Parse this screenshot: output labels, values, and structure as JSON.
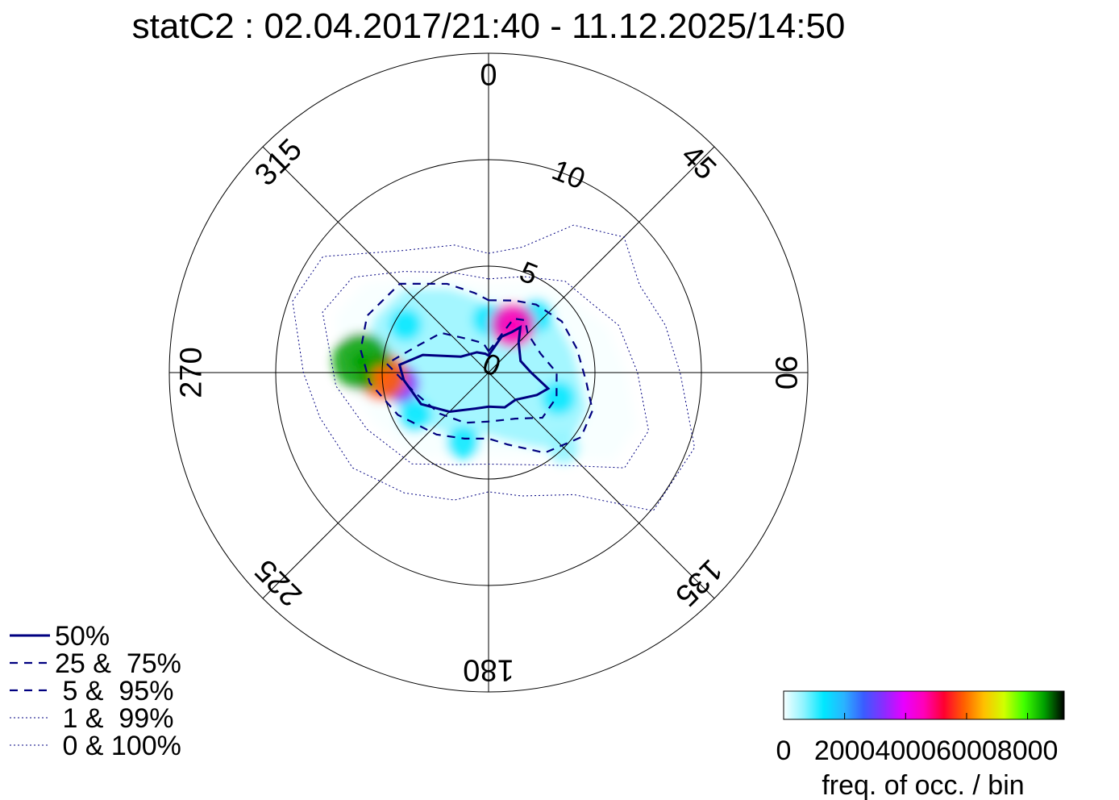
{
  "chart_data": {
    "type": "heatmap",
    "title": "statC2 : 02.04.2017/21:40 - 11.12.2025/14:50",
    "projection": "polar",
    "angular_ticks": [
      "0",
      "45",
      "90",
      "135",
      "180",
      "225",
      "270",
      "315"
    ],
    "angular_tick_values": [
      0,
      45,
      90,
      135,
      180,
      225,
      270,
      315
    ],
    "radial_ticks": [
      "0",
      "5",
      "10"
    ],
    "radial_tick_values": [
      0,
      5,
      10
    ],
    "radial_max": 15,
    "grid": true,
    "hotspots": [
      {
        "angle": 275,
        "radius": 6.0,
        "value": 8800
      },
      {
        "angle": 268,
        "radius": 5.0,
        "value": 6200
      },
      {
        "angle": 263,
        "radius": 4.2,
        "value": 3000
      },
      {
        "angle": 27,
        "radius": 2.5,
        "value": 4800
      },
      {
        "angle": 40,
        "radius": 3.5,
        "value": 1500
      },
      {
        "angle": 110,
        "radius": 3.5,
        "value": 1500
      },
      {
        "angle": 135,
        "radius": 5.0,
        "value": 900
      },
      {
        "angle": 200,
        "radius": 3.5,
        "value": 1300
      },
      {
        "angle": 240,
        "radius": 4.0,
        "value": 1500
      },
      {
        "angle": 300,
        "radius": 4.5,
        "value": 1100
      },
      {
        "angle": 0,
        "radius": 2.5,
        "value": 1200
      }
    ],
    "contours": [
      {
        "level": "50%",
        "style": "solid",
        "points": [
          [
            0,
            0.8
          ],
          [
            20,
            1.8
          ],
          [
            30,
            2.2
          ],
          [
            35,
            2.6
          ],
          [
            45,
            2.0
          ],
          [
            70,
            1.6
          ],
          [
            90,
            2.0
          ],
          [
            105,
            2.9
          ],
          [
            115,
            2.5
          ],
          [
            135,
            1.8
          ],
          [
            155,
            1.8
          ],
          [
            180,
            1.6
          ],
          [
            200,
            1.8
          ],
          [
            225,
            2.6
          ],
          [
            245,
            3.5
          ],
          [
            265,
            4.0
          ],
          [
            275,
            4.2
          ],
          [
            285,
            3.2
          ],
          [
            300,
            1.5
          ],
          [
            330,
            1.1
          ],
          [
            350,
            0.9
          ],
          [
            360,
            0.8
          ]
        ]
      },
      {
        "level": "25 & 75%",
        "style": "dashed",
        "points": [
          [
            0,
            1.0
          ],
          [
            25,
            2.8
          ],
          [
            35,
            3.0
          ],
          [
            45,
            2.6
          ],
          [
            70,
            2.6
          ],
          [
            90,
            3.2
          ],
          [
            110,
            3.4
          ],
          [
            130,
            3.3
          ],
          [
            150,
            2.5
          ],
          [
            180,
            2.3
          ],
          [
            205,
            2.6
          ],
          [
            230,
            3.0
          ],
          [
            255,
            3.6
          ],
          [
            275,
            4.8
          ],
          [
            290,
            3.6
          ],
          [
            310,
            2.9
          ],
          [
            330,
            1.8
          ],
          [
            350,
            1.4
          ],
          [
            360,
            1.0
          ]
        ]
      },
      {
        "level": "5 & 95%",
        "style": "dashed",
        "points": [
          [
            0,
            3.4
          ],
          [
            20,
            3.6
          ],
          [
            35,
            3.9
          ],
          [
            55,
            4.2
          ],
          [
            75,
            4.3
          ],
          [
            95,
            4.6
          ],
          [
            110,
            5.2
          ],
          [
            125,
            5.3
          ],
          [
            145,
            4.6
          ],
          [
            165,
            3.5
          ],
          [
            180,
            3.1
          ],
          [
            200,
            3.3
          ],
          [
            220,
            3.8
          ],
          [
            245,
            4.7
          ],
          [
            265,
            5.6
          ],
          [
            280,
            6.1
          ],
          [
            295,
            6.3
          ],
          [
            315,
            5.9
          ],
          [
            335,
            4.6
          ],
          [
            350,
            3.8
          ],
          [
            360,
            3.4
          ]
        ]
      },
      {
        "level": "1 & 99%",
        "style": "dotted",
        "points": [
          [
            0,
            4.4
          ],
          [
            20,
            4.8
          ],
          [
            40,
            5.6
          ],
          [
            55,
            5.8
          ],
          [
            70,
            6.5
          ],
          [
            90,
            7.0
          ],
          [
            110,
            8.0
          ],
          [
            125,
            7.8
          ],
          [
            140,
            5.7
          ],
          [
            160,
            4.6
          ],
          [
            180,
            4.3
          ],
          [
            200,
            4.6
          ],
          [
            220,
            5.6
          ],
          [
            245,
            6.3
          ],
          [
            265,
            7.2
          ],
          [
            290,
            8.3
          ],
          [
            305,
            7.8
          ],
          [
            320,
            6.2
          ],
          [
            340,
            5.0
          ],
          [
            360,
            4.4
          ]
        ]
      },
      {
        "level": "0 & 100%",
        "style": "dotted",
        "points": [
          [
            0,
            5.6
          ],
          [
            15,
            6.1
          ],
          [
            30,
            8.0
          ],
          [
            45,
            9.0
          ],
          [
            60,
            8.2
          ],
          [
            75,
            8.6
          ],
          [
            90,
            9.0
          ],
          [
            110,
            10.3
          ],
          [
            130,
            10.1
          ],
          [
            145,
            7.0
          ],
          [
            165,
            6.0
          ],
          [
            180,
            5.6
          ],
          [
            195,
            6.2
          ],
          [
            215,
            6.9
          ],
          [
            235,
            7.8
          ],
          [
            255,
            8.2
          ],
          [
            270,
            8.7
          ],
          [
            290,
            9.8
          ],
          [
            305,
            9.5
          ],
          [
            325,
            7.0
          ],
          [
            345,
            6.2
          ],
          [
            360,
            5.6
          ]
        ]
      }
    ],
    "legend": [
      {
        "label": "50%",
        "style": "solid"
      },
      {
        "label": "25 &  75%",
        "style": "dashed"
      },
      {
        "label": " 5 &  95%",
        "style": "dashed"
      },
      {
        "label": " 1 &  99%",
        "style": "dotted"
      },
      {
        "label": " 0 & 100%",
        "style": "dotted"
      }
    ],
    "legend_placement": "bottom-left",
    "colorbar": {
      "label": "freq. of occ. / bin",
      "ticks": [
        "0",
        "2000",
        "4000",
        "6000",
        "8000"
      ],
      "tick_values": [
        0,
        2000,
        4000,
        6000,
        8000
      ],
      "range": [
        0,
        9200
      ],
      "colors": [
        "#f6ffff",
        "#8ff4ff",
        "#00e8ff",
        "#2ab4ff",
        "#3a5cff",
        "#8a2cff",
        "#e800ff",
        "#ff00b8",
        "#ff0030",
        "#ff6000",
        "#ffc000",
        "#d0ff00",
        "#40ff00",
        "#00a000",
        "#000000"
      ],
      "placement": "bottom-right"
    },
    "contour_color": "#000080"
  }
}
